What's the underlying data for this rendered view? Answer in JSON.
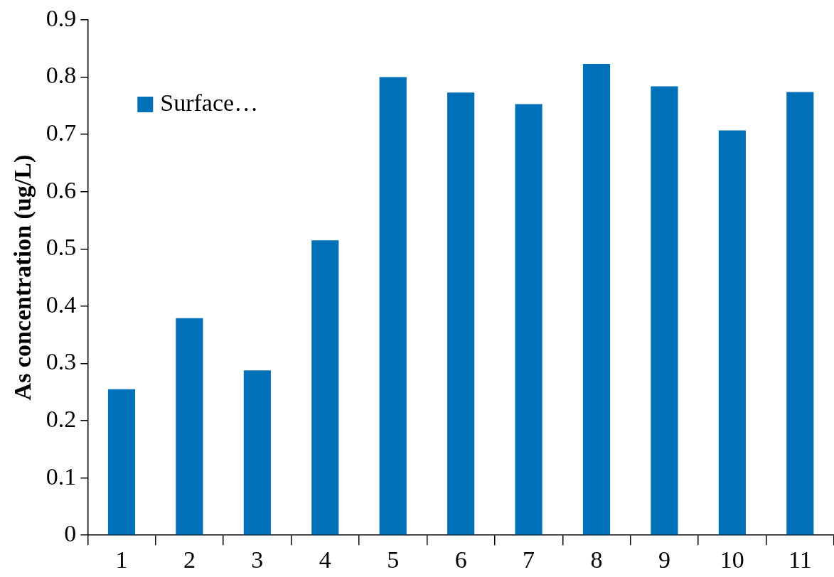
{
  "chart_data": {
    "type": "bar",
    "ylabel": "As concentration (ug/L)",
    "categories": [
      "1",
      "2",
      "3",
      "4",
      "5",
      "6",
      "7",
      "8",
      "9",
      "10",
      "11"
    ],
    "series": [
      {
        "name": "Surface…",
        "color": "#0070b8",
        "values": [
          0.255,
          0.379,
          0.288,
          0.515,
          0.8,
          0.773,
          0.753,
          0.823,
          0.784,
          0.707,
          0.774
        ]
      }
    ],
    "ylim": [
      0,
      0.9
    ],
    "yticks": [
      0,
      0.1,
      0.2,
      0.3,
      0.4,
      0.5,
      0.6,
      0.7,
      0.8,
      0.9
    ],
    "grid": false,
    "legend": "top left"
  }
}
